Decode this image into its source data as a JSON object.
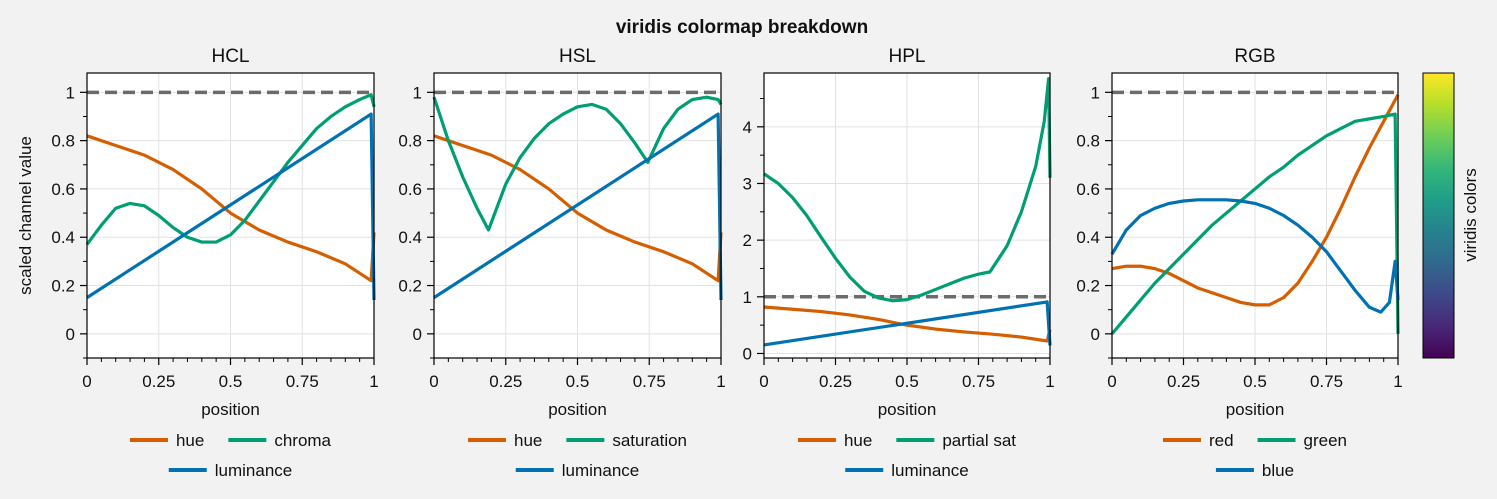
{
  "figure": {
    "title": "viridis colormap breakdown",
    "colorbar_label": "viridis colors",
    "reference_line_value": 1
  },
  "colors": {
    "orange": "#d55e00",
    "green": "#009e73",
    "blue": "#0072b2",
    "reference": "#6b6b6b",
    "viridis_stops": [
      "#440154",
      "#482878",
      "#3e4989",
      "#31688e",
      "#26828e",
      "#1f9e89",
      "#35b779",
      "#6ece58",
      "#b5de2b",
      "#fde725"
    ]
  },
  "chart_data": [
    {
      "type": "line",
      "title": "HCL",
      "xlabel": "position",
      "ylabel": "scaled channel value",
      "xlim": [
        0,
        1
      ],
      "ylim": [
        -0.1,
        1.08
      ],
      "x_ticks": [
        0,
        0.25,
        0.5,
        0.75,
        1
      ],
      "x_tick_labels": [
        "0",
        "0.25",
        "0.5",
        "0.75",
        "1"
      ],
      "y_ticks": [
        0,
        0.2,
        0.4,
        0.6,
        0.8,
        1
      ],
      "y_tick_labels": [
        "0",
        "0.2",
        "0.4",
        "0.6",
        "0.8",
        "1"
      ],
      "grid": true,
      "legend": "bottom",
      "series": [
        {
          "name": "hue",
          "color": "orange",
          "x": [
            0,
            0.1,
            0.2,
            0.3,
            0.4,
            0.5,
            0.6,
            0.7,
            0.8,
            0.9,
            0.99,
            1.0
          ],
          "y": [
            0.82,
            0.78,
            0.74,
            0.68,
            0.6,
            0.5,
            0.43,
            0.38,
            0.34,
            0.29,
            0.22,
            0.42
          ]
        },
        {
          "name": "chroma",
          "color": "green",
          "x": [
            0,
            0.05,
            0.1,
            0.15,
            0.2,
            0.25,
            0.3,
            0.35,
            0.4,
            0.45,
            0.5,
            0.55,
            0.6,
            0.65,
            0.7,
            0.75,
            0.8,
            0.85,
            0.9,
            0.95,
            0.99,
            1.0
          ],
          "y": [
            0.37,
            0.45,
            0.52,
            0.54,
            0.53,
            0.49,
            0.44,
            0.4,
            0.38,
            0.38,
            0.41,
            0.47,
            0.55,
            0.63,
            0.71,
            0.78,
            0.85,
            0.9,
            0.94,
            0.97,
            0.99,
            0.94
          ]
        },
        {
          "name": "luminance",
          "color": "blue",
          "x": [
            0,
            0.99,
            1.0
          ],
          "y": [
            0.15,
            0.91,
            0.14
          ]
        }
      ]
    },
    {
      "type": "line",
      "title": "HSL",
      "xlabel": "position",
      "ylabel": "",
      "xlim": [
        0,
        1
      ],
      "ylim": [
        -0.1,
        1.08
      ],
      "x_ticks": [
        0,
        0.25,
        0.5,
        0.75,
        1
      ],
      "x_tick_labels": [
        "0",
        "0.25",
        "0.5",
        "0.75",
        "1"
      ],
      "y_ticks": [
        0,
        0.2,
        0.4,
        0.6,
        0.8,
        1
      ],
      "y_tick_labels": [
        "0",
        "0.2",
        "0.4",
        "0.6",
        "0.8",
        "1"
      ],
      "grid": true,
      "legend": "bottom",
      "series": [
        {
          "name": "hue",
          "color": "orange",
          "x": [
            0,
            0.1,
            0.2,
            0.3,
            0.4,
            0.5,
            0.6,
            0.7,
            0.8,
            0.9,
            0.99,
            1.0
          ],
          "y": [
            0.82,
            0.78,
            0.74,
            0.68,
            0.6,
            0.5,
            0.43,
            0.38,
            0.34,
            0.29,
            0.22,
            0.42
          ]
        },
        {
          "name": "saturation",
          "color": "green",
          "x": [
            0,
            0.05,
            0.1,
            0.15,
            0.19,
            0.25,
            0.3,
            0.35,
            0.4,
            0.45,
            0.5,
            0.55,
            0.6,
            0.65,
            0.7,
            0.745,
            0.8,
            0.85,
            0.9,
            0.95,
            0.99,
            1.0
          ],
          "y": [
            0.98,
            0.8,
            0.65,
            0.52,
            0.43,
            0.62,
            0.73,
            0.81,
            0.87,
            0.91,
            0.94,
            0.95,
            0.93,
            0.87,
            0.79,
            0.71,
            0.85,
            0.93,
            0.97,
            0.98,
            0.97,
            0.95
          ]
        },
        {
          "name": "luminance",
          "color": "blue",
          "x": [
            0,
            0.99,
            1.0
          ],
          "y": [
            0.15,
            0.91,
            0.14
          ]
        }
      ]
    },
    {
      "type": "line",
      "title": "HPL",
      "xlabel": "position",
      "ylabel": "",
      "xlim": [
        0,
        1
      ],
      "ylim": [
        -0.08,
        4.95
      ],
      "x_ticks": [
        0,
        0.25,
        0.5,
        0.75,
        1
      ],
      "x_tick_labels": [
        "0",
        "0.25",
        "0.5",
        "0.75",
        "1"
      ],
      "y_ticks": [
        0,
        1,
        2,
        3,
        4
      ],
      "y_tick_labels": [
        "0",
        "1",
        "2",
        "3",
        "4"
      ],
      "grid": true,
      "legend": "bottom",
      "series": [
        {
          "name": "hue",
          "color": "orange",
          "x": [
            0,
            0.1,
            0.2,
            0.3,
            0.4,
            0.5,
            0.6,
            0.7,
            0.8,
            0.9,
            0.99,
            1.0
          ],
          "y": [
            0.82,
            0.78,
            0.74,
            0.68,
            0.6,
            0.5,
            0.43,
            0.38,
            0.34,
            0.29,
            0.22,
            0.42
          ]
        },
        {
          "name": "partial sat",
          "color": "green",
          "x": [
            0,
            0.05,
            0.1,
            0.15,
            0.2,
            0.25,
            0.3,
            0.35,
            0.4,
            0.45,
            0.5,
            0.55,
            0.6,
            0.65,
            0.7,
            0.75,
            0.79,
            0.85,
            0.9,
            0.95,
            0.98,
            0.995,
            1.0
          ],
          "y": [
            3.17,
            3.0,
            2.75,
            2.43,
            2.05,
            1.68,
            1.35,
            1.1,
            0.98,
            0.93,
            0.95,
            1.03,
            1.13,
            1.23,
            1.33,
            1.4,
            1.44,
            1.9,
            2.5,
            3.3,
            4.1,
            4.85,
            3.1
          ]
        },
        {
          "name": "luminance",
          "color": "blue",
          "x": [
            0,
            0.99,
            1.0
          ],
          "y": [
            0.15,
            0.91,
            0.14
          ]
        }
      ]
    },
    {
      "type": "line",
      "title": "RGB",
      "xlabel": "position",
      "ylabel": "",
      "xlim": [
        0,
        1
      ],
      "ylim": [
        -0.1,
        1.08
      ],
      "x_ticks": [
        0,
        0.25,
        0.5,
        0.75,
        1
      ],
      "x_tick_labels": [
        "0",
        "0.25",
        "0.5",
        "0.75",
        "1"
      ],
      "y_ticks": [
        0,
        0.2,
        0.4,
        0.6,
        0.8,
        1
      ],
      "y_tick_labels": [
        "0",
        "0.2",
        "0.4",
        "0.6",
        "0.8",
        "1"
      ],
      "grid": true,
      "legend": "bottom",
      "series": [
        {
          "name": "red",
          "color": "orange",
          "x": [
            0,
            0.05,
            0.1,
            0.15,
            0.2,
            0.25,
            0.3,
            0.35,
            0.4,
            0.45,
            0.5,
            0.55,
            0.6,
            0.65,
            0.7,
            0.75,
            0.8,
            0.85,
            0.9,
            0.95,
            1.0
          ],
          "y": [
            0.27,
            0.28,
            0.28,
            0.27,
            0.25,
            0.22,
            0.19,
            0.17,
            0.15,
            0.13,
            0.12,
            0.12,
            0.15,
            0.21,
            0.3,
            0.4,
            0.52,
            0.65,
            0.77,
            0.88,
            0.99
          ]
        },
        {
          "name": "green",
          "color": "green",
          "x": [
            0,
            0.05,
            0.1,
            0.15,
            0.2,
            0.25,
            0.3,
            0.35,
            0.4,
            0.45,
            0.5,
            0.55,
            0.6,
            0.65,
            0.7,
            0.75,
            0.8,
            0.85,
            0.9,
            0.95,
            0.99,
            1.0
          ],
          "y": [
            0.0,
            0.07,
            0.14,
            0.21,
            0.27,
            0.33,
            0.39,
            0.45,
            0.5,
            0.55,
            0.6,
            0.65,
            0.69,
            0.74,
            0.78,
            0.82,
            0.85,
            0.88,
            0.89,
            0.9,
            0.91,
            0.0
          ]
        },
        {
          "name": "blue",
          "color": "blue",
          "x": [
            0,
            0.05,
            0.1,
            0.15,
            0.2,
            0.25,
            0.3,
            0.35,
            0.4,
            0.45,
            0.5,
            0.55,
            0.6,
            0.65,
            0.7,
            0.75,
            0.8,
            0.85,
            0.9,
            0.94,
            0.97,
            0.99,
            1.0
          ],
          "y": [
            0.33,
            0.43,
            0.49,
            0.52,
            0.54,
            0.55,
            0.555,
            0.555,
            0.555,
            0.55,
            0.54,
            0.52,
            0.49,
            0.45,
            0.4,
            0.34,
            0.26,
            0.18,
            0.11,
            0.09,
            0.13,
            0.3,
            0.14
          ]
        }
      ]
    }
  ]
}
